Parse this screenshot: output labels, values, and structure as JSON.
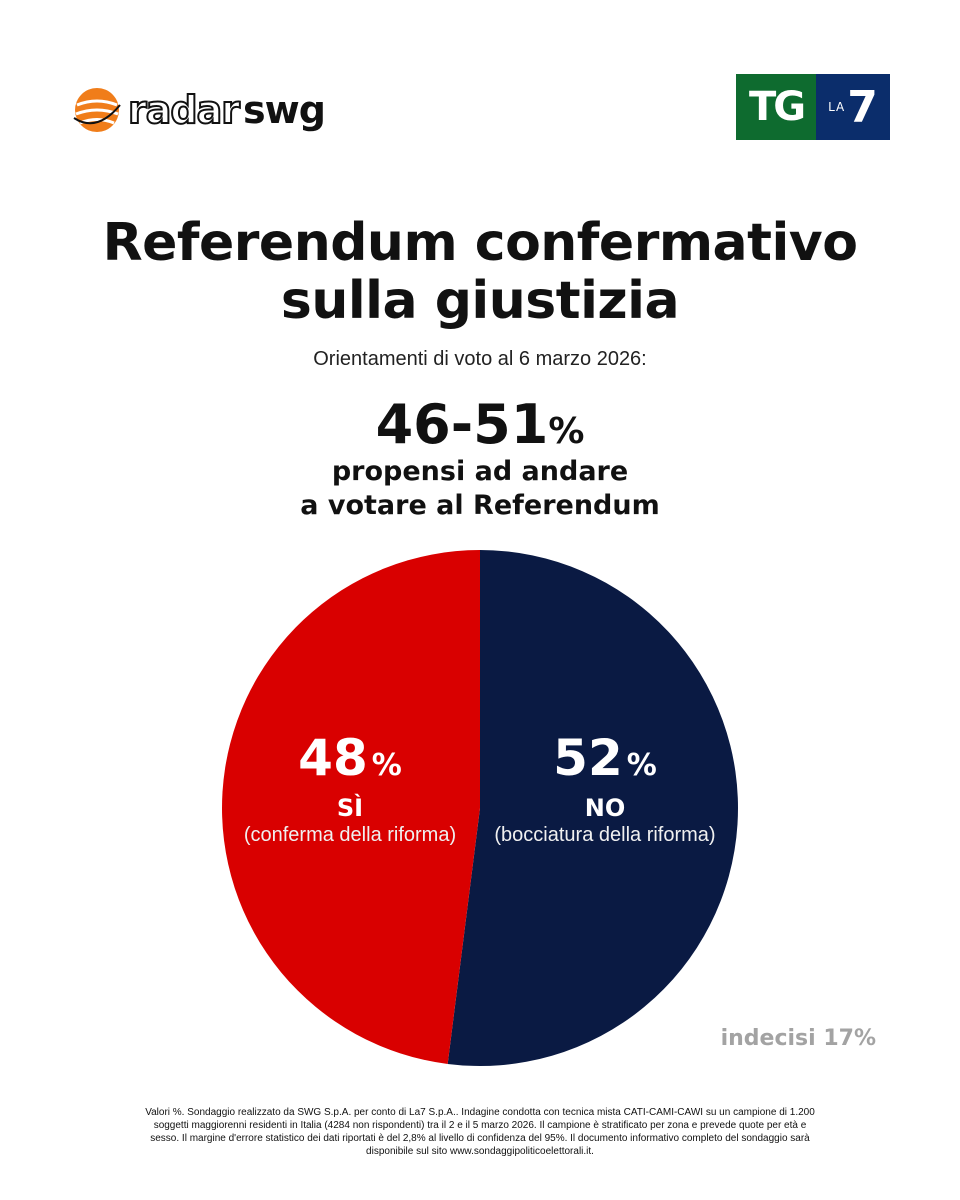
{
  "header": {
    "radar_logo_text_1": "radar",
    "radar_logo_text_2": "swg",
    "tg_logo_text": "TG",
    "la7_logo_text_la": "LA",
    "la7_logo_text_7": "7"
  },
  "title_line1": "Referendum confermativo",
  "title_line2": "sulla giustizia",
  "subtitle": "Orientamenti di voto al 6 marzo 2026:",
  "turnout": {
    "range": "46-51",
    "unit": "%",
    "label_line1": "propensi ad andare",
    "label_line2": "a votare al Referendum"
  },
  "chart_data": {
    "type": "pie",
    "slices": [
      {
        "value": 48,
        "value_text": "48",
        "unit": "%",
        "label": "SÌ",
        "description": "(conferma della riforma)",
        "color": "#d90000"
      },
      {
        "value": 52,
        "value_text": "52",
        "unit": "%",
        "label": "NO",
        "description": "(bocciatura della riforma)",
        "color": "#0a1a43"
      }
    ],
    "start": "top",
    "order": "NO clockwise from top, SÌ remaining"
  },
  "undecided": "indecisi 17%",
  "footnote": "Valori %. Sondaggio realizzato da SWG S.p.A. per conto di La7 S.p.A.. Indagine condotta con tecnica mista CATI-CAMI-CAWI su un campione di 1.200 soggetti maggiorenni residenti in Italia (4284 non rispondenti) tra il 2 e il 5 marzo 2026. Il campione è stratificato per zona e prevede quote per età e sesso. Il margine d'errore statistico dei dati riportati è del 2,8% al livello di confidenza del 95%. Il documento informativo completo del sondaggio sarà disponibile sul sito www.sondaggipoliticoelettorali.it.",
  "colors": {
    "si": "#d90000",
    "no": "#0a1a43",
    "tg_green": "#0e6b2f",
    "la7_blue": "#0b2d6b",
    "radar_orange": "#f07d1a"
  }
}
